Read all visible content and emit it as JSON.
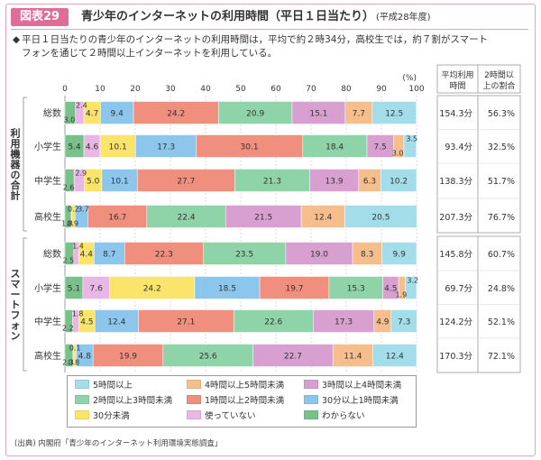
{
  "figure": {
    "label": "図表29",
    "title": "青少年のインターネットの利用時間（平日１日当たり）",
    "subtitle": "(平成28年度)",
    "lead_mark": "◆",
    "lead_line1": "平日１日当たりの青少年のインターネットの利用時間は，平均で約２時34分，高校生では，約７割がスマート",
    "lead_line2": "フォンを通じて２時間以上インターネットを利用している。",
    "source": "(出典) 内閣府「青少年のインターネット利用環境実態調査」"
  },
  "colors": {
    "accent": "#e06c97",
    "cat": [
      "#a3dde9",
      "#f6be8c",
      "#d8a0d0",
      "#8fd3a8",
      "#f08f7d",
      "#8dc6ec",
      "#fbe46b",
      "#e8b7e6",
      "#79c08b"
    ]
  },
  "chart_data": {
    "type": "bar",
    "orientation": "horizontal",
    "stacked": true,
    "unit": "(%)",
    "xlim": [
      0,
      100
    ],
    "xticks": [
      "0",
      "10",
      "20",
      "30",
      "40",
      "50",
      "60",
      "70",
      "80",
      "90",
      "100"
    ],
    "series_names": [
      "5時間以上",
      "4時間以上5時間未満",
      "3時間以上4時間未満",
      "2時間以上3時間未満",
      "1時間以上2時間未満",
      "30分以上1時間未満",
      "30分未満",
      "使っていない",
      "わからない"
    ],
    "segment_order": [
      8,
      7,
      6,
      5,
      4,
      3,
      2,
      1,
      0
    ],
    "table_headers": [
      "平均利用時間",
      "2時間以上の割合"
    ],
    "groups": [
      {
        "name": "利用機器の合計",
        "rows": [
          {
            "label": "総数",
            "values": [
              12.5,
              7.7,
              15.1,
              20.9,
              24.2,
              9.4,
              4.7,
              2.4,
              3.0
            ],
            "avg": "154.3分",
            "pct2h": "56.3%"
          },
          {
            "label": "小学生",
            "values": [
              3.5,
              3.0,
              7.5,
              18.4,
              30.1,
              17.3,
              10.1,
              4.6,
              5.4
            ],
            "avg": "93.4分",
            "pct2h": "32.5%"
          },
          {
            "label": "中学生",
            "values": [
              10.2,
              6.3,
              13.9,
              21.3,
              27.7,
              10.1,
              5.0,
              2.9,
              2.6
            ],
            "avg": "138.3分",
            "pct2h": "51.7%"
          },
          {
            "label": "高校生",
            "values": [
              20.5,
              12.4,
              21.5,
              22.4,
              16.7,
              3.7,
              0.9,
              0.2,
              1.8
            ],
            "avg": "207.3分",
            "pct2h": "76.7%"
          }
        ]
      },
      {
        "name": "スマートフォン",
        "rows": [
          {
            "label": "総数",
            "values": [
              9.9,
              8.3,
              19.0,
              23.5,
              22.3,
              8.7,
              4.4,
              1.4,
              2.5
            ],
            "avg": "145.8分",
            "pct2h": "60.7%"
          },
          {
            "label": "小学生",
            "values": [
              3.2,
              1.9,
              4.5,
              15.3,
              19.7,
              18.5,
              24.2,
              7.6,
              5.1
            ],
            "avg": "69.7分",
            "pct2h": "24.8%"
          },
          {
            "label": "中学生",
            "values": [
              7.3,
              4.9,
              17.3,
              22.6,
              27.1,
              12.4,
              4.5,
              1.8,
              2.2
            ],
            "avg": "124.2分",
            "pct2h": "52.1%"
          },
          {
            "label": "高校生",
            "values": [
              12.4,
              11.4,
              22.7,
              25.6,
              19.9,
              4.8,
              0.8,
              0.1,
              2.3
            ],
            "avg": "170.3分",
            "pct2h": "72.1%"
          }
        ]
      }
    ]
  }
}
